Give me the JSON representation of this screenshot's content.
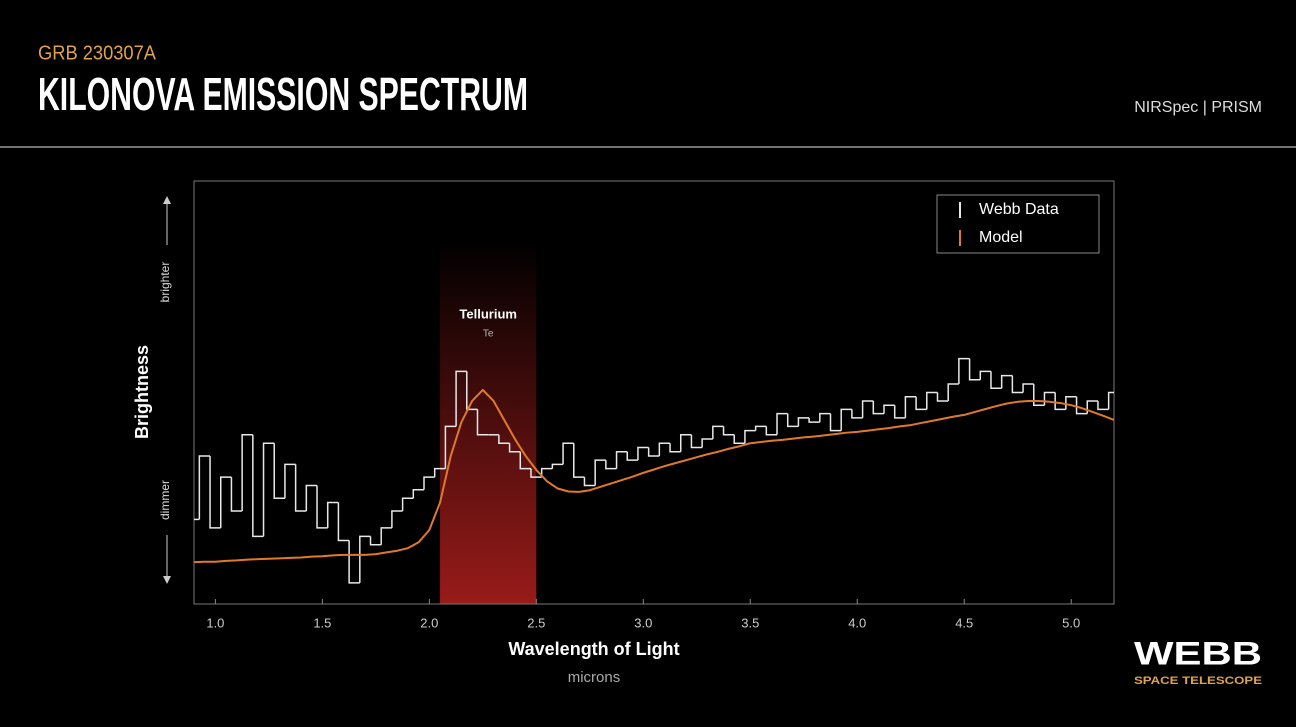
{
  "header": {
    "kicker": "GRB 230307A",
    "title": "KILONOVA EMISSION SPECTRUM",
    "instrument": "NIRSpec | PRISM"
  },
  "logo": {
    "name": "WEBB",
    "tagline": "SPACE TELESCOPE"
  },
  "chart_data": {
    "type": "line",
    "x_label": "Wavelength of Light",
    "x_unit": "microns",
    "y_label": "Brightness",
    "y_high_label": "brighter",
    "y_low_label": "dimmer",
    "xlim": [
      0.9,
      5.2
    ],
    "xticks": [
      {
        "value": 1,
        "label": "1.0"
      },
      1.5,
      {
        "value": 2,
        "label": "2.0"
      },
      2.5,
      {
        "value": 3,
        "label": "3.0"
      },
      3.5,
      {
        "value": 4,
        "label": "4.0"
      },
      4.5,
      {
        "value": 5,
        "label": "5.0"
      }
    ],
    "ylim": [
      0,
      100
    ],
    "legend": "upper right",
    "highlight": {
      "range": [
        2.05,
        2.5
      ],
      "label": "Tellurium",
      "sublabel": "Te",
      "color": "#b3201e"
    },
    "x": [
      0.9,
      0.95,
      1.0,
      1.05,
      1.1,
      1.15,
      1.2,
      1.25,
      1.3,
      1.35,
      1.4,
      1.45,
      1.5,
      1.55,
      1.6,
      1.65,
      1.7,
      1.75,
      1.8,
      1.85,
      1.9,
      1.95,
      2.0,
      2.05,
      2.1,
      2.15,
      2.2,
      2.25,
      2.3,
      2.35,
      2.4,
      2.45,
      2.5,
      2.55,
      2.6,
      2.65,
      2.7,
      2.75,
      2.8,
      2.85,
      2.9,
      2.95,
      3.0,
      3.05,
      3.1,
      3.15,
      3.2,
      3.25,
      3.3,
      3.35,
      3.4,
      3.45,
      3.5,
      3.55,
      3.6,
      3.65,
      3.7,
      3.75,
      3.8,
      3.85,
      3.9,
      3.95,
      4.0,
      4.05,
      4.1,
      4.15,
      4.2,
      4.25,
      4.3,
      4.35,
      4.4,
      4.45,
      4.5,
      4.55,
      4.6,
      4.65,
      4.7,
      4.75,
      4.8,
      4.85,
      4.9,
      4.95,
      5.0,
      5.05,
      5.1,
      5.15,
      5.2
    ],
    "series": [
      {
        "name": "Webb Data",
        "color": "#e8e8e8",
        "step": true,
        "values": [
          20,
          35,
          18,
          30,
          22,
          40,
          16,
          38,
          25,
          33,
          22,
          28,
          18,
          24,
          15,
          5,
          16,
          14,
          18,
          22,
          25,
          27,
          30,
          32,
          42,
          55,
          46,
          40,
          40,
          38,
          36,
          32,
          30,
          32,
          33,
          38,
          30,
          28,
          34,
          32,
          36,
          34,
          37,
          35,
          38,
          36,
          40,
          37,
          39,
          42,
          40,
          38,
          41,
          42,
          40,
          45,
          42,
          44,
          43,
          45,
          41,
          46,
          44,
          48,
          45,
          47,
          44,
          49,
          46,
          50,
          48,
          52,
          58,
          53,
          55,
          51,
          54,
          50,
          52,
          47,
          50,
          46,
          49,
          45,
          48,
          46,
          50
        ]
      },
      {
        "name": "Model",
        "color": "#e07a2a",
        "step": false,
        "values": [
          9.9,
          10,
          10,
          10.2,
          10.3,
          10.5,
          10.6,
          10.7,
          10.8,
          10.9,
          11,
          11.2,
          11.3,
          11.5,
          11.6,
          11.6,
          11.6,
          11.8,
          12.2,
          12.6,
          13.2,
          14.6,
          17.5,
          24,
          35,
          43,
          48,
          50.6,
          48,
          43.5,
          39,
          35,
          31.7,
          29,
          27.3,
          26.6,
          26.5,
          26.9,
          27.7,
          28.5,
          29.3,
          30.1,
          31,
          31.8,
          32.6,
          33.3,
          34,
          34.7,
          35.4,
          36,
          36.7,
          37.3,
          38,
          38.3,
          38.6,
          38.8,
          39.1,
          39.4,
          39.6,
          39.9,
          40.2,
          40.5,
          40.7,
          41,
          41.3,
          41.6,
          42,
          42.3,
          42.8,
          43.3,
          43.8,
          44.3,
          44.7,
          45.4,
          46.1,
          46.8,
          47.4,
          47.8,
          48,
          48,
          47.8,
          47.5,
          47,
          46.3,
          45.4,
          44.5,
          43.5
        ]
      }
    ]
  }
}
